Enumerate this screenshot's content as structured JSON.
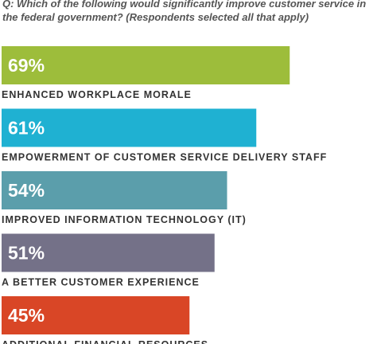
{
  "question": "Q: Which of the following would significantly improve customer service in the federal government? (Respondents selected all that apply)",
  "chart_data": {
    "type": "bar",
    "orientation": "horizontal",
    "unit": "%",
    "categories": [
      "ENHANCED WORKPLACE MORALE",
      "EMPOWERMENT OF CUSTOMER SERVICE DELIVERY STAFF",
      "IMPROVED INFORMATION TECHNOLOGY (IT)",
      "A BETTER CUSTOMER EXPERIENCE",
      "ADDITIONAL FINANCIAL RESOURCES"
    ],
    "values": [
      69,
      61,
      54,
      51,
      45
    ],
    "value_labels": [
      "69%",
      "61%",
      "54%",
      "51%",
      "45%"
    ],
    "colors": [
      "#9dbd3b",
      "#1fb1d2",
      "#5b9eab",
      "#747188",
      "#d94626"
    ],
    "title": "",
    "xlabel": "",
    "ylabel": "",
    "grid": false,
    "legend": "none"
  }
}
